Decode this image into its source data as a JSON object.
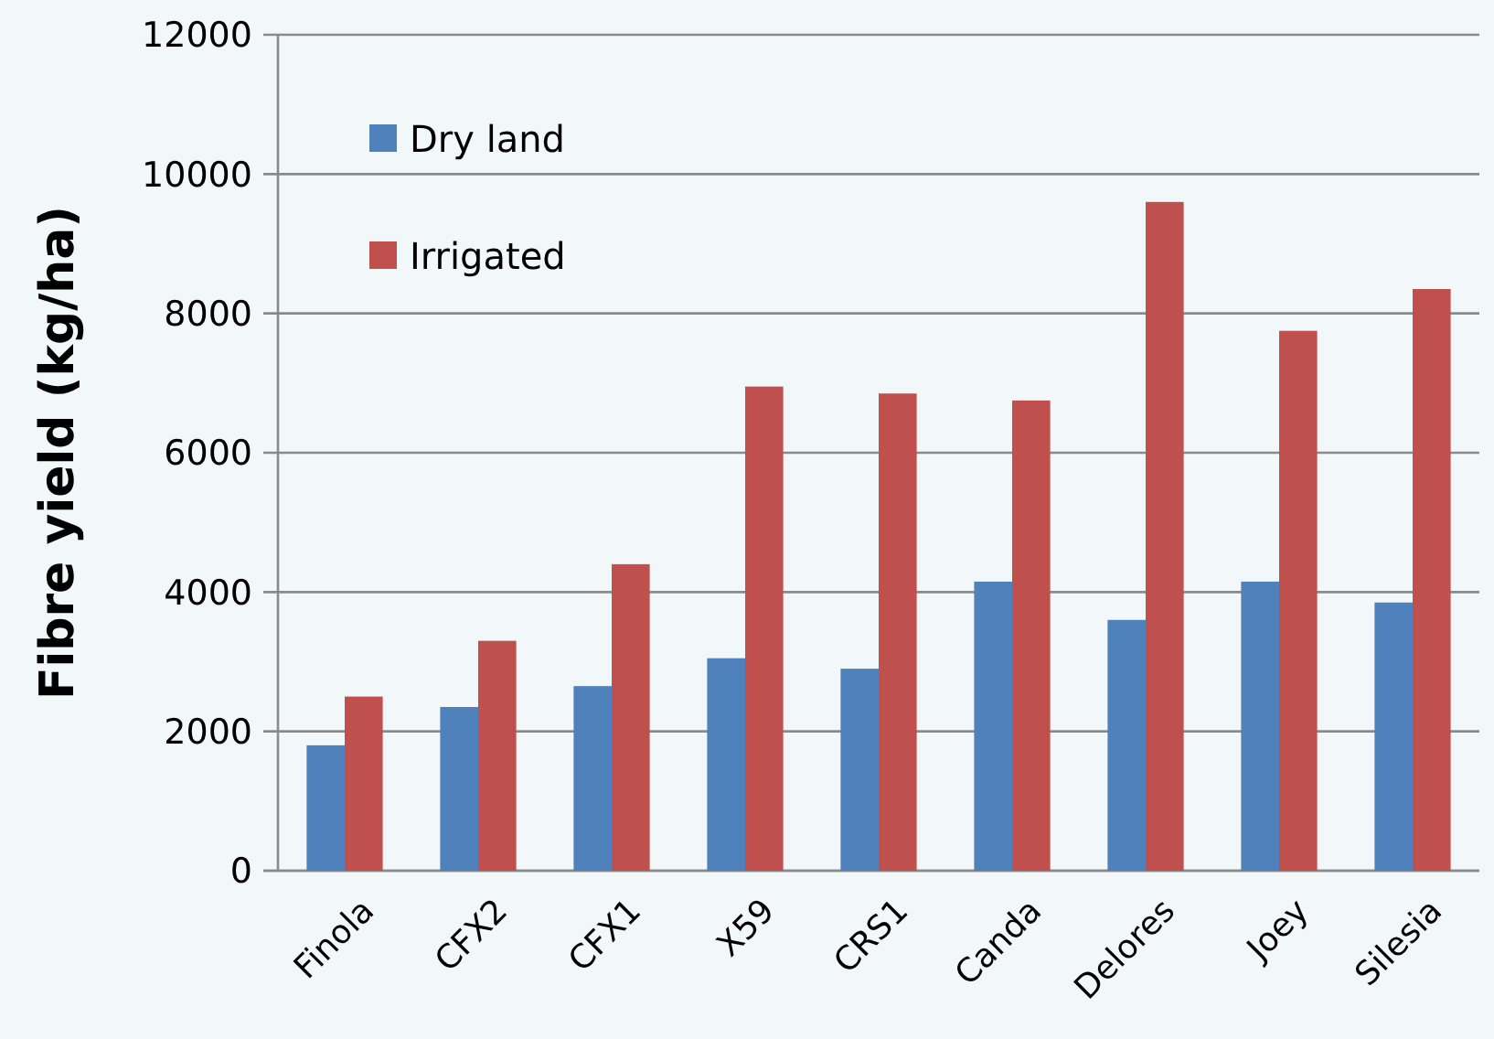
{
  "chart_data": {
    "type": "bar",
    "ylabel": "Fibre yield (kg/ha)",
    "categories": [
      "Finola",
      "CFX2",
      "CFX1",
      "X59",
      "CRS1",
      "Canda",
      "Delores",
      "Joey",
      "Silesia"
    ],
    "series": [
      {
        "name": "Dry land",
        "color": "#4f81bd",
        "values": [
          1800,
          2350,
          2650,
          3050,
          2900,
          4150,
          3600,
          4150,
          3850
        ]
      },
      {
        "name": "Irrigated",
        "color": "#c0504d",
        "values": [
          2500,
          3300,
          4400,
          6950,
          6850,
          6750,
          9600,
          7750,
          8350
        ]
      }
    ],
    "ylim": [
      0,
      12000
    ],
    "yticks": [
      0,
      2000,
      4000,
      6000,
      8000,
      10000,
      12000
    ],
    "grid": "y",
    "legend": "top left"
  }
}
